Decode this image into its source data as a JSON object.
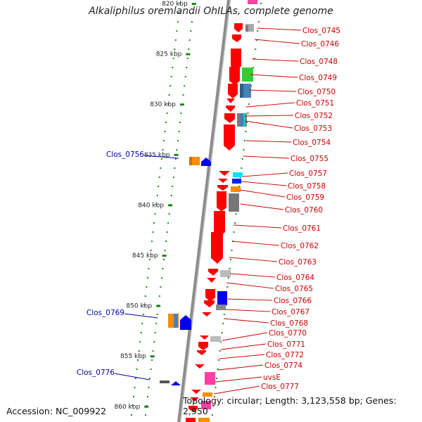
{
  "title": "Alkaliphilus oremlandii OhILAs, complete genome",
  "footer": {
    "accession": "Accession: NC_009922",
    "topology": "Topology: circular; Length: 3,123,558 bp; Genes: 2,950"
  },
  "kbp_ticks": [
    {
      "label": "820 kbp",
      "pos": 820
    },
    {
      "label": "825 kbp",
      "pos": 825
    },
    {
      "label": "830 kbp",
      "pos": 830
    },
    {
      "label": "835 kbp",
      "pos": 835
    },
    {
      "label": "840 kbp",
      "pos": 840
    },
    {
      "label": "845 kbp",
      "pos": 845
    },
    {
      "label": "850 kbp",
      "pos": 850
    },
    {
      "label": "855 kbp",
      "pos": 855
    },
    {
      "label": "860 kbp",
      "pos": 860
    }
  ],
  "right_labels": [
    "Clos_0745",
    "Clos_0746",
    "Clos_0748",
    "Clos_0749",
    "Clos_0750",
    "Clos_0751",
    "Clos_0752",
    "Clos_0753",
    "Clos_0754",
    "Clos_0755",
    "Clos_0757",
    "Clos_0758",
    "Clos_0759",
    "Clos_0760",
    "Clos_0761",
    "Clos_0762",
    "Clos_0763",
    "Clos_0764",
    "Clos_0765",
    "Clos_0766",
    "Clos_0767",
    "Clos_0768",
    "Clos_0770",
    "Clos_0771",
    "Clos_0772",
    "Clos_0774",
    "uvsE",
    "Clos_0777"
  ],
  "left_labels": [
    "Clos_0756",
    "Clos_0769",
    "Clos_0776"
  ],
  "colors": {
    "forward_gene": "#ff0000",
    "reverse_gene": "#0000ff",
    "right_label": "#cc0000",
    "left_label": "#0000aa",
    "backbone": "#888888",
    "dots": "#1a8a1a"
  }
}
